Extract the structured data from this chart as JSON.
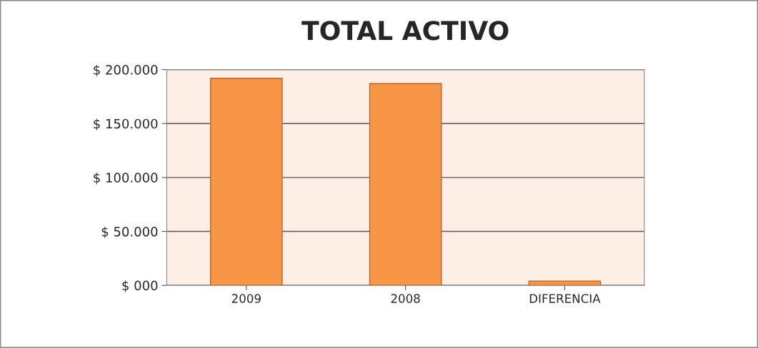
{
  "chart_data": {
    "type": "bar",
    "title": "TOTAL ACTIVO",
    "categories": [
      "2009",
      "2008",
      "DIFERENCIA"
    ],
    "values": [
      192000,
      187000,
      4000
    ],
    "color": "#f79646",
    "ylim": [
      0,
      200000
    ],
    "yticks": [
      {
        "value": 0,
        "label": "$ 000"
      },
      {
        "value": 50000,
        "label": "$ 50.000"
      },
      {
        "value": 100000,
        "label": "$ 100.000"
      },
      {
        "value": 150000,
        "label": "$ 150.000"
      },
      {
        "value": 200000,
        "label": "$ 200.000"
      }
    ],
    "grid": "y"
  }
}
